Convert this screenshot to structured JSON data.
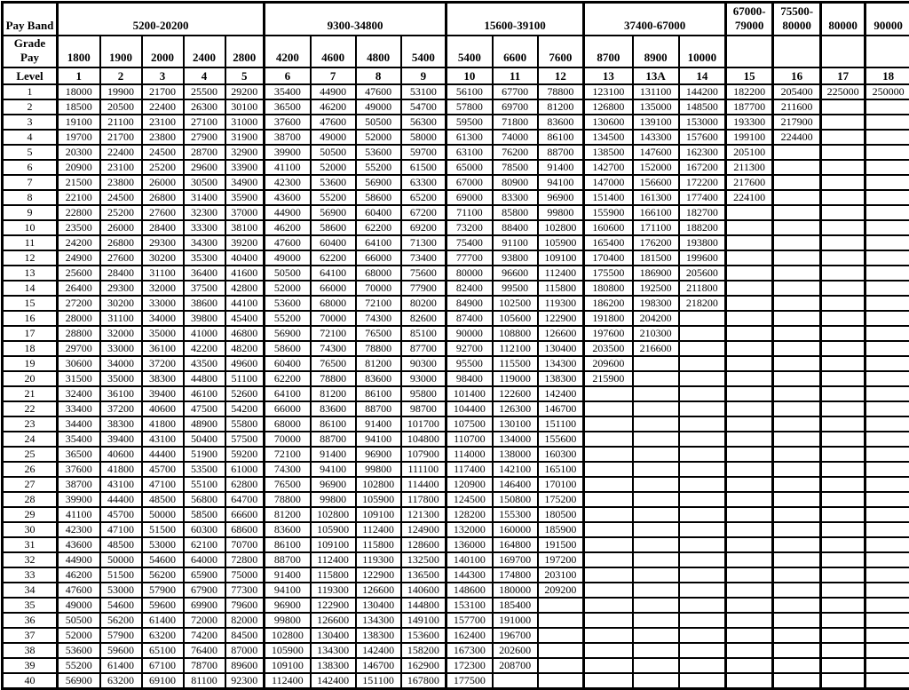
{
  "table": {
    "corner": {
      "pay_band_label": "Pay Band",
      "grade_pay_label": "Grade Pay",
      "level_label": "Level"
    },
    "pay_bands": [
      {
        "label": "5200-20200",
        "colspan": 5
      },
      {
        "label": "9300-34800",
        "colspan": 4
      },
      {
        "label": "15600-39100",
        "colspan": 3
      },
      {
        "label": "37400-67000",
        "colspan": 3
      },
      {
        "label": "67000-79000",
        "colspan": 1
      },
      {
        "label": "75500-80000",
        "colspan": 1
      },
      {
        "label": "80000",
        "colspan": 1
      },
      {
        "label": "90000",
        "colspan": 1
      }
    ],
    "grade_pays": [
      "1800",
      "1900",
      "2000",
      "2400",
      "2800",
      "4200",
      "4600",
      "4800",
      "5400",
      "5400",
      "6600",
      "7600",
      "8700",
      "8900",
      "10000",
      "",
      "",
      "",
      ""
    ],
    "levels": [
      "1",
      "2",
      "3",
      "4",
      "5",
      "6",
      "7",
      "8",
      "9",
      "10",
      "11",
      "12",
      "13",
      "13A",
      "14",
      "15",
      "16",
      "17",
      "18"
    ],
    "rows": [
      {
        "index": 1,
        "values": [
          18000,
          19900,
          21700,
          25500,
          29200,
          35400,
          44900,
          47600,
          53100,
          56100,
          67700,
          78800,
          123100,
          131100,
          144200,
          182200,
          205400,
          225000,
          250000
        ]
      },
      {
        "index": 2,
        "values": [
          18500,
          20500,
          22400,
          26300,
          30100,
          36500,
          46200,
          49000,
          54700,
          57800,
          69700,
          81200,
          126800,
          135000,
          148500,
          187700,
          211600
        ]
      },
      {
        "index": 3,
        "values": [
          19100,
          21100,
          23100,
          27100,
          31000,
          37600,
          47600,
          50500,
          56300,
          59500,
          71800,
          83600,
          130600,
          139100,
          153000,
          193300,
          217900
        ]
      },
      {
        "index": 4,
        "values": [
          19700,
          21700,
          23800,
          27900,
          31900,
          38700,
          49000,
          52000,
          58000,
          61300,
          74000,
          86100,
          134500,
          143300,
          157600,
          199100,
          224400
        ]
      },
      {
        "index": 5,
        "values": [
          20300,
          22400,
          24500,
          28700,
          32900,
          39900,
          50500,
          53600,
          59700,
          63100,
          76200,
          88700,
          138500,
          147600,
          162300,
          205100
        ]
      },
      {
        "index": 6,
        "values": [
          20900,
          23100,
          25200,
          29600,
          33900,
          41100,
          52000,
          55200,
          61500,
          65000,
          78500,
          91400,
          142700,
          152000,
          167200,
          211300
        ]
      },
      {
        "index": 7,
        "values": [
          21500,
          23800,
          26000,
          30500,
          34900,
          42300,
          53600,
          56900,
          63300,
          67000,
          80900,
          94100,
          147000,
          156600,
          172200,
          217600
        ]
      },
      {
        "index": 8,
        "values": [
          22100,
          24500,
          26800,
          31400,
          35900,
          43600,
          55200,
          58600,
          65200,
          69000,
          83300,
          96900,
          151400,
          161300,
          177400,
          224100
        ]
      },
      {
        "index": 9,
        "values": [
          22800,
          25200,
          27600,
          32300,
          37000,
          44900,
          56900,
          60400,
          67200,
          71100,
          85800,
          99800,
          155900,
          166100,
          182700
        ]
      },
      {
        "index": 10,
        "values": [
          23500,
          26000,
          28400,
          33300,
          38100,
          46200,
          58600,
          62200,
          69200,
          73200,
          88400,
          102800,
          160600,
          171100,
          188200
        ]
      },
      {
        "index": 11,
        "values": [
          24200,
          26800,
          29300,
          34300,
          39200,
          47600,
          60400,
          64100,
          71300,
          75400,
          91100,
          105900,
          165400,
          176200,
          193800
        ]
      },
      {
        "index": 12,
        "values": [
          24900,
          27600,
          30200,
          35300,
          40400,
          49000,
          62200,
          66000,
          73400,
          77700,
          93800,
          109100,
          170400,
          181500,
          199600
        ]
      },
      {
        "index": 13,
        "values": [
          25600,
          28400,
          31100,
          36400,
          41600,
          50500,
          64100,
          68000,
          75600,
          80000,
          96600,
          112400,
          175500,
          186900,
          205600
        ]
      },
      {
        "index": 14,
        "values": [
          26400,
          29300,
          32000,
          37500,
          42800,
          52000,
          66000,
          70000,
          77900,
          82400,
          99500,
          115800,
          180800,
          192500,
          211800
        ]
      },
      {
        "index": 15,
        "values": [
          27200,
          30200,
          33000,
          38600,
          44100,
          53600,
          68000,
          72100,
          80200,
          84900,
          102500,
          119300,
          186200,
          198300,
          218200
        ]
      },
      {
        "index": 16,
        "values": [
          28000,
          31100,
          34000,
          39800,
          45400,
          55200,
          70000,
          74300,
          82600,
          87400,
          105600,
          122900,
          191800,
          204200
        ]
      },
      {
        "index": 17,
        "values": [
          28800,
          32000,
          35000,
          41000,
          46800,
          56900,
          72100,
          76500,
          85100,
          90000,
          108800,
          126600,
          197600,
          210300
        ]
      },
      {
        "index": 18,
        "values": [
          29700,
          33000,
          36100,
          42200,
          48200,
          58600,
          74300,
          78800,
          87700,
          92700,
          112100,
          130400,
          203500,
          216600
        ]
      },
      {
        "index": 19,
        "values": [
          30600,
          34000,
          37200,
          43500,
          49600,
          60400,
          76500,
          81200,
          90300,
          95500,
          115500,
          134300,
          209600
        ]
      },
      {
        "index": 20,
        "values": [
          31500,
          35000,
          38300,
          44800,
          51100,
          62200,
          78800,
          83600,
          93000,
          98400,
          119000,
          138300,
          215900
        ]
      },
      {
        "index": 21,
        "values": [
          32400,
          36100,
          39400,
          46100,
          52600,
          64100,
          81200,
          86100,
          95800,
          101400,
          122600,
          142400
        ]
      },
      {
        "index": 22,
        "values": [
          33400,
          37200,
          40600,
          47500,
          54200,
          66000,
          83600,
          88700,
          98700,
          104400,
          126300,
          146700
        ]
      },
      {
        "index": 23,
        "values": [
          34400,
          38300,
          41800,
          48900,
          55800,
          68000,
          86100,
          91400,
          101700,
          107500,
          130100,
          151100
        ]
      },
      {
        "index": 24,
        "values": [
          35400,
          39400,
          43100,
          50400,
          57500,
          70000,
          88700,
          94100,
          104800,
          110700,
          134000,
          155600
        ]
      },
      {
        "index": 25,
        "values": [
          36500,
          40600,
          44400,
          51900,
          59200,
          72100,
          91400,
          96900,
          107900,
          114000,
          138000,
          160300
        ]
      },
      {
        "index": 26,
        "values": [
          37600,
          41800,
          45700,
          53500,
          61000,
          74300,
          94100,
          99800,
          111100,
          117400,
          142100,
          165100
        ]
      },
      {
        "index": 27,
        "values": [
          38700,
          43100,
          47100,
          55100,
          62800,
          76500,
          96900,
          102800,
          114400,
          120900,
          146400,
          170100
        ]
      },
      {
        "index": 28,
        "values": [
          39900,
          44400,
          48500,
          56800,
          64700,
          78800,
          99800,
          105900,
          117800,
          124500,
          150800,
          175200
        ]
      },
      {
        "index": 29,
        "values": [
          41100,
          45700,
          50000,
          58500,
          66600,
          81200,
          102800,
          109100,
          121300,
          128200,
          155300,
          180500
        ]
      },
      {
        "index": 30,
        "values": [
          42300,
          47100,
          51500,
          60300,
          68600,
          83600,
          105900,
          112400,
          124900,
          132000,
          160000,
          185900
        ]
      },
      {
        "index": 31,
        "values": [
          43600,
          48500,
          53000,
          62100,
          70700,
          86100,
          109100,
          115800,
          128600,
          136000,
          164800,
          191500
        ]
      },
      {
        "index": 32,
        "values": [
          44900,
          50000,
          54600,
          64000,
          72800,
          88700,
          112400,
          119300,
          132500,
          140100,
          169700,
          197200
        ]
      },
      {
        "index": 33,
        "values": [
          46200,
          51500,
          56200,
          65900,
          75000,
          91400,
          115800,
          122900,
          136500,
          144300,
          174800,
          203100
        ]
      },
      {
        "index": 34,
        "values": [
          47600,
          53000,
          57900,
          67900,
          77300,
          94100,
          119300,
          126600,
          140600,
          148600,
          180000,
          209200
        ]
      },
      {
        "index": 35,
        "values": [
          49000,
          54600,
          59600,
          69900,
          79600,
          96900,
          122900,
          130400,
          144800,
          153100,
          185400
        ]
      },
      {
        "index": 36,
        "values": [
          50500,
          56200,
          61400,
          72000,
          82000,
          99800,
          126600,
          134300,
          149100,
          157700,
          191000
        ]
      },
      {
        "index": 37,
        "values": [
          52000,
          57900,
          63200,
          74200,
          84500,
          102800,
          130400,
          138300,
          153600,
          162400,
          196700
        ]
      },
      {
        "index": 38,
        "values": [
          53600,
          59600,
          65100,
          76400,
          87000,
          105900,
          134300,
          142400,
          158200,
          167300,
          202600
        ]
      },
      {
        "index": 39,
        "values": [
          55200,
          61400,
          67100,
          78700,
          89600,
          109100,
          138300,
          146700,
          162900,
          172300,
          208700
        ]
      },
      {
        "index": 40,
        "values": [
          56900,
          63200,
          69100,
          81100,
          92300,
          112400,
          142400,
          151100,
          167800,
          177500
        ]
      }
    ]
  }
}
